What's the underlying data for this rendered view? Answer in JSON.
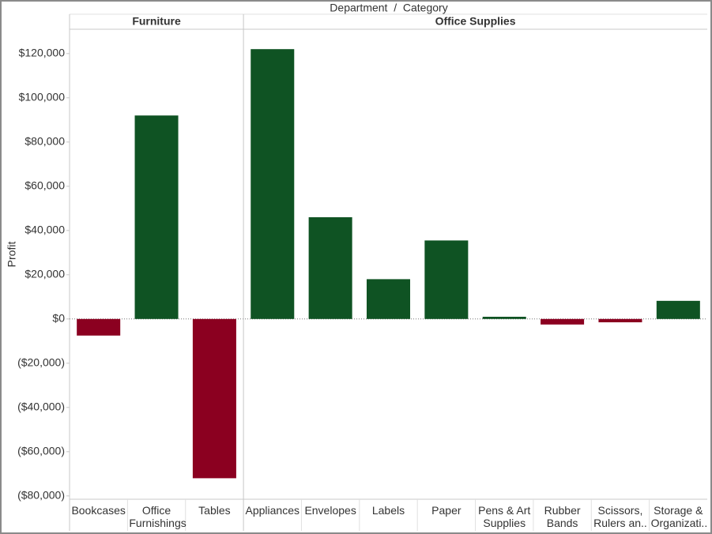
{
  "chart_data": {
    "type": "bar",
    "header": "Department  /  Category",
    "y_label": "Profit",
    "colors": {
      "positive": "#0f5323",
      "negative": "#8b0020"
    },
    "groups": [
      {
        "name": "Furniture",
        "categories": [
          "Bookcases",
          "Office Furnishings",
          "Tables"
        ],
        "values": [
          -7500,
          92000,
          -72000
        ]
      },
      {
        "name": "Office Supplies",
        "categories": [
          "Appliances",
          "Envelopes",
          "Labels",
          "Paper",
          "Pens & Art Supplies",
          "Rubber Bands",
          "Scissors, Rulers an..",
          "Storage & Organizati.."
        ],
        "values": [
          122000,
          46000,
          18000,
          35500,
          1000,
          -2500,
          -1500,
          8200
        ]
      }
    ],
    "ylim": [
      -81500,
      131000
    ],
    "yticks": [
      {
        "value": 120000,
        "label": "$120,000"
      },
      {
        "value": 100000,
        "label": "$100,000"
      },
      {
        "value": 80000,
        "label": "$80,000"
      },
      {
        "value": 60000,
        "label": "$60,000"
      },
      {
        "value": 40000,
        "label": "$40,000"
      },
      {
        "value": 20000,
        "label": "$20,000"
      },
      {
        "value": 0,
        "label": "$0"
      },
      {
        "value": -20000,
        "label": "($20,000)"
      },
      {
        "value": -40000,
        "label": "($40,000)"
      },
      {
        "value": -60000,
        "label": "($60,000)"
      },
      {
        "value": -80000,
        "label": "($80,000)"
      }
    ]
  }
}
